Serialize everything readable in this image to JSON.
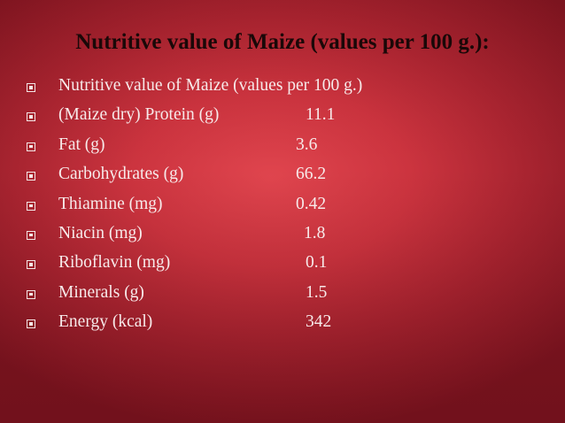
{
  "title": "Nutritive value of Maize (values per 100 g.):",
  "items": [
    {
      "label": "Nutritive value of Maize (values per 100 g.)",
      "value": ""
    },
    {
      "label": " (Maize dry) Protein (g)",
      "value": "11.1"
    },
    {
      "label": " Fat (g)",
      "value": "3.6"
    },
    {
      "label": "Carbohydrates (g)",
      "value": "66.2"
    },
    {
      "label": "Thiamine (mg)",
      "value": "0.42"
    },
    {
      "label": "Niacin (mg)",
      "value": "1.8"
    },
    {
      "label": "Riboflavin (mg)",
      "value": "0.1"
    },
    {
      "label": "Minerals (g)",
      "value": "1.5"
    },
    {
      "label": "Energy (kcal)",
      "value": "342"
    }
  ]
}
